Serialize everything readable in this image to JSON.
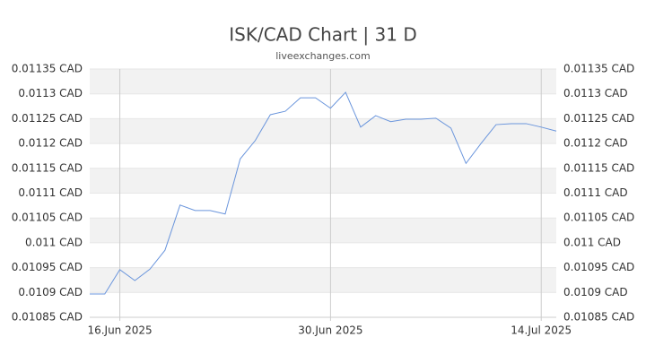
{
  "chart_data": {
    "type": "line",
    "title": "ISK/CAD Chart | 31 D",
    "subtitle": "liveexchanges.com",
    "categories": [
      null,
      null,
      "16.Jun 2025",
      null,
      null,
      null,
      null,
      null,
      null,
      null,
      null,
      null,
      null,
      null,
      null,
      null,
      "30.Jun 2025",
      null,
      null,
      null,
      null,
      null,
      null,
      null,
      null,
      null,
      null,
      null,
      null,
      null,
      "14.Jul 2025",
      null
    ],
    "series": [
      {
        "name": "ISK/CAD",
        "color": "#6a95dc",
        "values": [
          0.010897,
          0.010897,
          0.010946,
          0.010924,
          0.010947,
          0.010985,
          0.011076,
          0.011065,
          0.011065,
          0.011058,
          0.011169,
          0.011206,
          0.011258,
          0.011265,
          0.011292,
          0.011292,
          0.011271,
          0.011303,
          0.011233,
          0.011256,
          0.011244,
          0.011249,
          0.011249,
          0.011251,
          0.011231,
          0.01116,
          0.0112,
          0.011238,
          0.01124,
          0.01124,
          0.011233,
          0.011225
        ]
      }
    ],
    "ylim": [
      0.01085,
      0.01135
    ],
    "yticks": [
      {
        "value": 0.01085,
        "label": "0.01085 CAD"
      },
      {
        "value": 0.0109,
        "label": "0.0109 CAD"
      },
      {
        "value": 0.01095,
        "label": "0.01095 CAD"
      },
      {
        "value": 0.011,
        "label": "0.011 CAD"
      },
      {
        "value": 0.01105,
        "label": "0.01105 CAD"
      },
      {
        "value": 0.0111,
        "label": "0.0111 CAD"
      },
      {
        "value": 0.01115,
        "label": "0.01115 CAD"
      },
      {
        "value": 0.0112,
        "label": "0.0112 CAD"
      },
      {
        "value": 0.01125,
        "label": "0.01125 CAD"
      },
      {
        "value": 0.0113,
        "label": "0.0113 CAD"
      },
      {
        "value": 0.01135,
        "label": "0.01135 CAD"
      }
    ],
    "grid": true,
    "band_color": "#f2f2f2"
  }
}
